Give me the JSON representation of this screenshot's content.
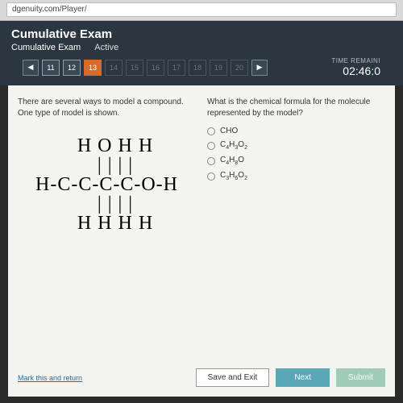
{
  "browser": {
    "url": "dgenuity.com/Player/"
  },
  "header": {
    "title": "Cumulative Exam",
    "subtitle": "Cumulative Exam",
    "status": "Active"
  },
  "nav": {
    "prev_glyph": "◀",
    "next_glyph": "▶",
    "questions": [
      {
        "n": "11",
        "state": "past"
      },
      {
        "n": "12",
        "state": "past"
      },
      {
        "n": "13",
        "state": "current"
      },
      {
        "n": "14",
        "state": "future"
      },
      {
        "n": "15",
        "state": "future"
      },
      {
        "n": "16",
        "state": "future"
      },
      {
        "n": "17",
        "state": "future"
      },
      {
        "n": "18",
        "state": "future"
      },
      {
        "n": "19",
        "state": "future"
      },
      {
        "n": "20",
        "state": "future"
      }
    ]
  },
  "timer": {
    "label": "TIME REMAINI",
    "value": "02:46:0"
  },
  "question": {
    "left_text": "There are several ways to model a compound. One type of model is shown.",
    "right_text": "What is the chemical formula for the molecule represented by the model?",
    "molecule_line1": "   H O H H",
    "molecule_line2": "   | | | |",
    "molecule_line3": "H-C-C-C-C-O-H",
    "molecule_line4": "   | | | |",
    "molecule_line5": "   H H H H",
    "options": [
      {
        "html": "CHO"
      },
      {
        "html": "C<span class='sub'>4</span>H<span class='sub'>3</span>O<span class='sub'>2</span>"
      },
      {
        "html": "C<span class='sub'>4</span>H<span class='sub'>8</span>O"
      },
      {
        "html": "C<span class='sub'>3</span>H<span class='sub'>6</span>O<span class='sub'>2</span>"
      }
    ]
  },
  "footer": {
    "mark": "Mark this and return",
    "save": "Save and Exit",
    "next": "Next",
    "submit": "Submit"
  },
  "colors": {
    "header_bg": "#2b3640",
    "current_q": "#d76b2b",
    "card_bg": "#f4f4f0",
    "next_btn": "#5aa7b8",
    "submit_btn": "#6ab090"
  }
}
